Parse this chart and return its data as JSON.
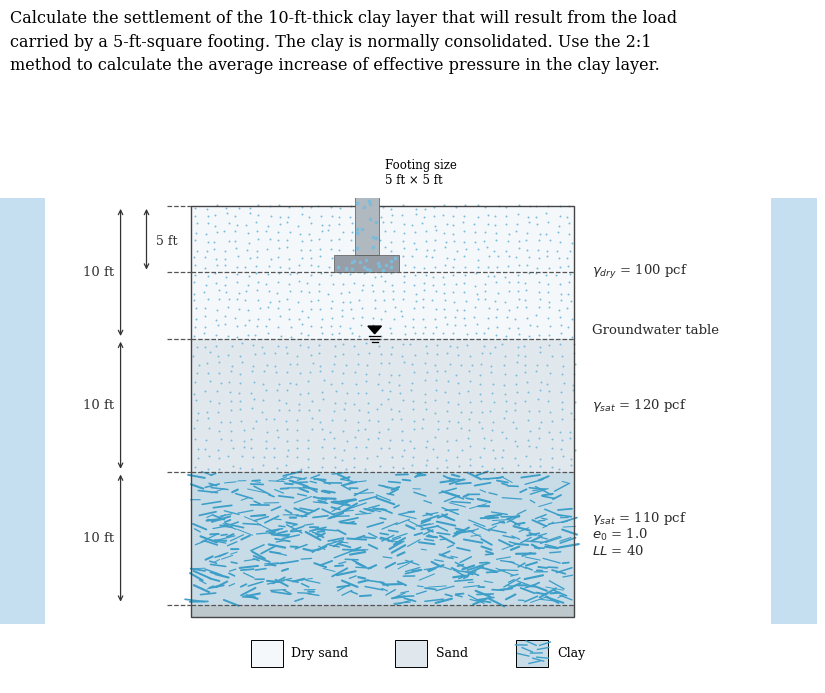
{
  "title_text": "Calculate the settlement of the 10-ft-thick clay layer that will result from the load\ncarried by a 5-ft-square footing. The clay is normally consolidated. Use the 2:1\nmethod to calculate the average increase of effective pressure in the clay layer.",
  "title_fontsize": 11.5,
  "bg_color": "#ffffff",
  "blue_border_color": "#c5dff0",
  "dry_sand_bg": "#f5f8fb",
  "dry_sand_dot": "#7bbcda",
  "sat_sand_bg": "#e0e8ee",
  "sat_sand_dot": "#7bbcda",
  "clay_bg": "#c8dce8",
  "clay_stroke": "#3d9ec8",
  "footing_stem_color": "#b0b8c0",
  "footing_base_color": "#989ea8",
  "footing_texture_color": "#7bbcda",
  "dim_color": "#333333",
  "label_color": "#2a2a2a",
  "dash_color": "#555555",
  "border_color": "#444444",
  "bottom_strip_color": "#bcc8cc",
  "gw_color": "#222222",
  "arrow_color": "#111111",
  "legend_dry": "Dry sand",
  "legend_sand": "Sand",
  "legend_clay": "Clay",
  "footing_label": "Footing size\n5 ft × 5 ft",
  "dim_5ft": "5 ft",
  "dim_10ft": "10 ft",
  "label_dry": "$\\gamma_{dry}$ = 100 pcf",
  "label_sat_sand": "$\\gamma_{sat}$ = 120 pcf",
  "label_gw": "Groundwater table",
  "label_clay1": "$\\gamma_{sat}$ = 110 pcf",
  "label_clay2": "$e_0$ = 1.0",
  "label_clay3": "$LL$ = 40"
}
